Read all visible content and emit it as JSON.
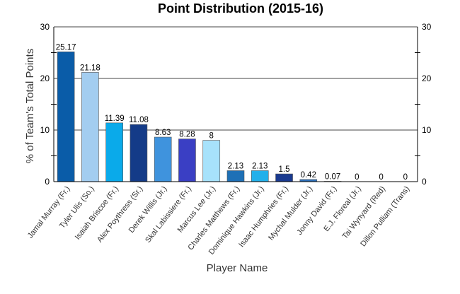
{
  "chart_data": {
    "type": "bar",
    "title": "Point Distribution (2015-16)",
    "xlabel": "Player Name",
    "ylabel": "% of Team's Total Points",
    "ylim": [
      0,
      30
    ],
    "yticks": [
      0,
      10,
      20,
      30
    ],
    "grid": true,
    "categories": [
      "Jamal Murray (Fr.)",
      "Tyler Ulis (So.)",
      "Isaiah Briscoe (Fr.)",
      "Alex Poythress (Sr.)",
      "Derek Willis (Jr.)",
      "Skal Labissiere (Fr.)",
      "Marcus Lee (Jr.)",
      "Charles Matthews (Fr.)",
      "Dominique Hawkins (Jr.)",
      "Isaac Humphries (Fr.)",
      "Mychal Mulder (Jr.)",
      "Jonny David (Fr.)",
      "E.J. Floreal (Jr.)",
      "Tai Wynyard (Red)",
      "Dillon Pulliam (Trans)"
    ],
    "values": [
      25.17,
      21.18,
      11.39,
      11.08,
      8.63,
      8.28,
      8,
      2.13,
      2.13,
      1.5,
      0.42,
      0.07,
      0,
      0,
      0
    ],
    "value_labels": [
      "25.17",
      "21.18",
      "11.39",
      "11.08",
      "8.63",
      "8.28",
      "8",
      "2.13",
      "2.13",
      "1.5",
      "0.42",
      "0.07",
      "0",
      "0",
      "0"
    ],
    "colors": [
      "#0a5ca8",
      "#a3cdf0",
      "#0aaaea",
      "#143b88",
      "#3f93dd",
      "#3a3fc4",
      "#a7e2fb",
      "#1e70b6",
      "#22b0ea",
      "#1a3a8f",
      "#2c6fb9",
      "#aed3f1",
      "#1aa3e6",
      "#133680",
      "#3c95dc"
    ]
  }
}
